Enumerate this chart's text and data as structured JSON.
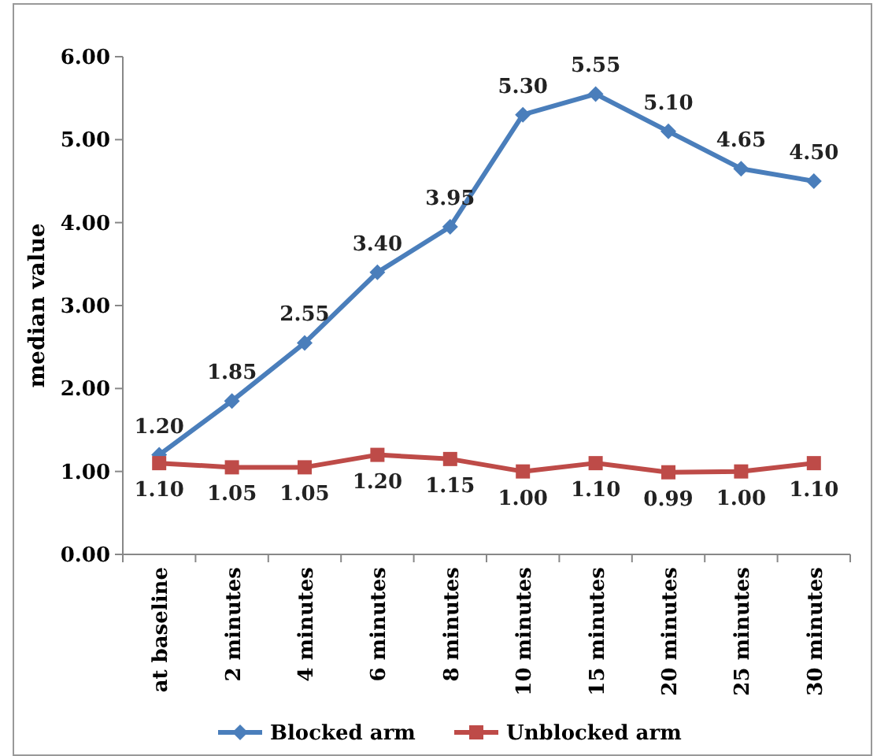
{
  "chart_data": {
    "type": "line",
    "ylabel": "median value",
    "categories": [
      "at baseline",
      "2 minutes",
      "4 minutes",
      "6 minutes",
      "8 minutes",
      "10 minutes",
      "15 minutes",
      "20 minutes",
      "25 minutes",
      "30 minutes"
    ],
    "series": [
      {
        "name": "Blocked arm",
        "color": "#4a7ebb",
        "marker": "diamond",
        "values": [
          1.2,
          1.85,
          2.55,
          3.4,
          3.95,
          5.3,
          5.55,
          5.1,
          4.65,
          4.5
        ],
        "value_labels": [
          "1.20",
          "1.85",
          "2.55",
          "3.40",
          "3.95",
          "5.30",
          "5.55",
          "5.10",
          "4.65",
          "4.50"
        ]
      },
      {
        "name": "Unblocked arm",
        "color": "#be4b48",
        "marker": "square",
        "values": [
          1.1,
          1.05,
          1.05,
          1.2,
          1.15,
          1.0,
          1.1,
          0.99,
          1.0,
          1.1
        ],
        "value_labels": [
          "1.10",
          "1.05",
          "1.05",
          "1.20",
          "1.15",
          "1.00",
          "1.10",
          "0.99",
          "1.00",
          "1.10"
        ]
      }
    ],
    "ylim": [
      0,
      6
    ],
    "yticks": [
      {
        "value": 0,
        "label": "0.00"
      },
      {
        "value": 1,
        "label": "1.00"
      },
      {
        "value": 2,
        "label": "2.00"
      },
      {
        "value": 3,
        "label": "3.00"
      },
      {
        "value": 4,
        "label": "4.00"
      },
      {
        "value": 5,
        "label": "5.00"
      },
      {
        "value": 6,
        "label": "6.00"
      }
    ],
    "grid": false,
    "legend": "bottom",
    "line_style": "solid"
  }
}
